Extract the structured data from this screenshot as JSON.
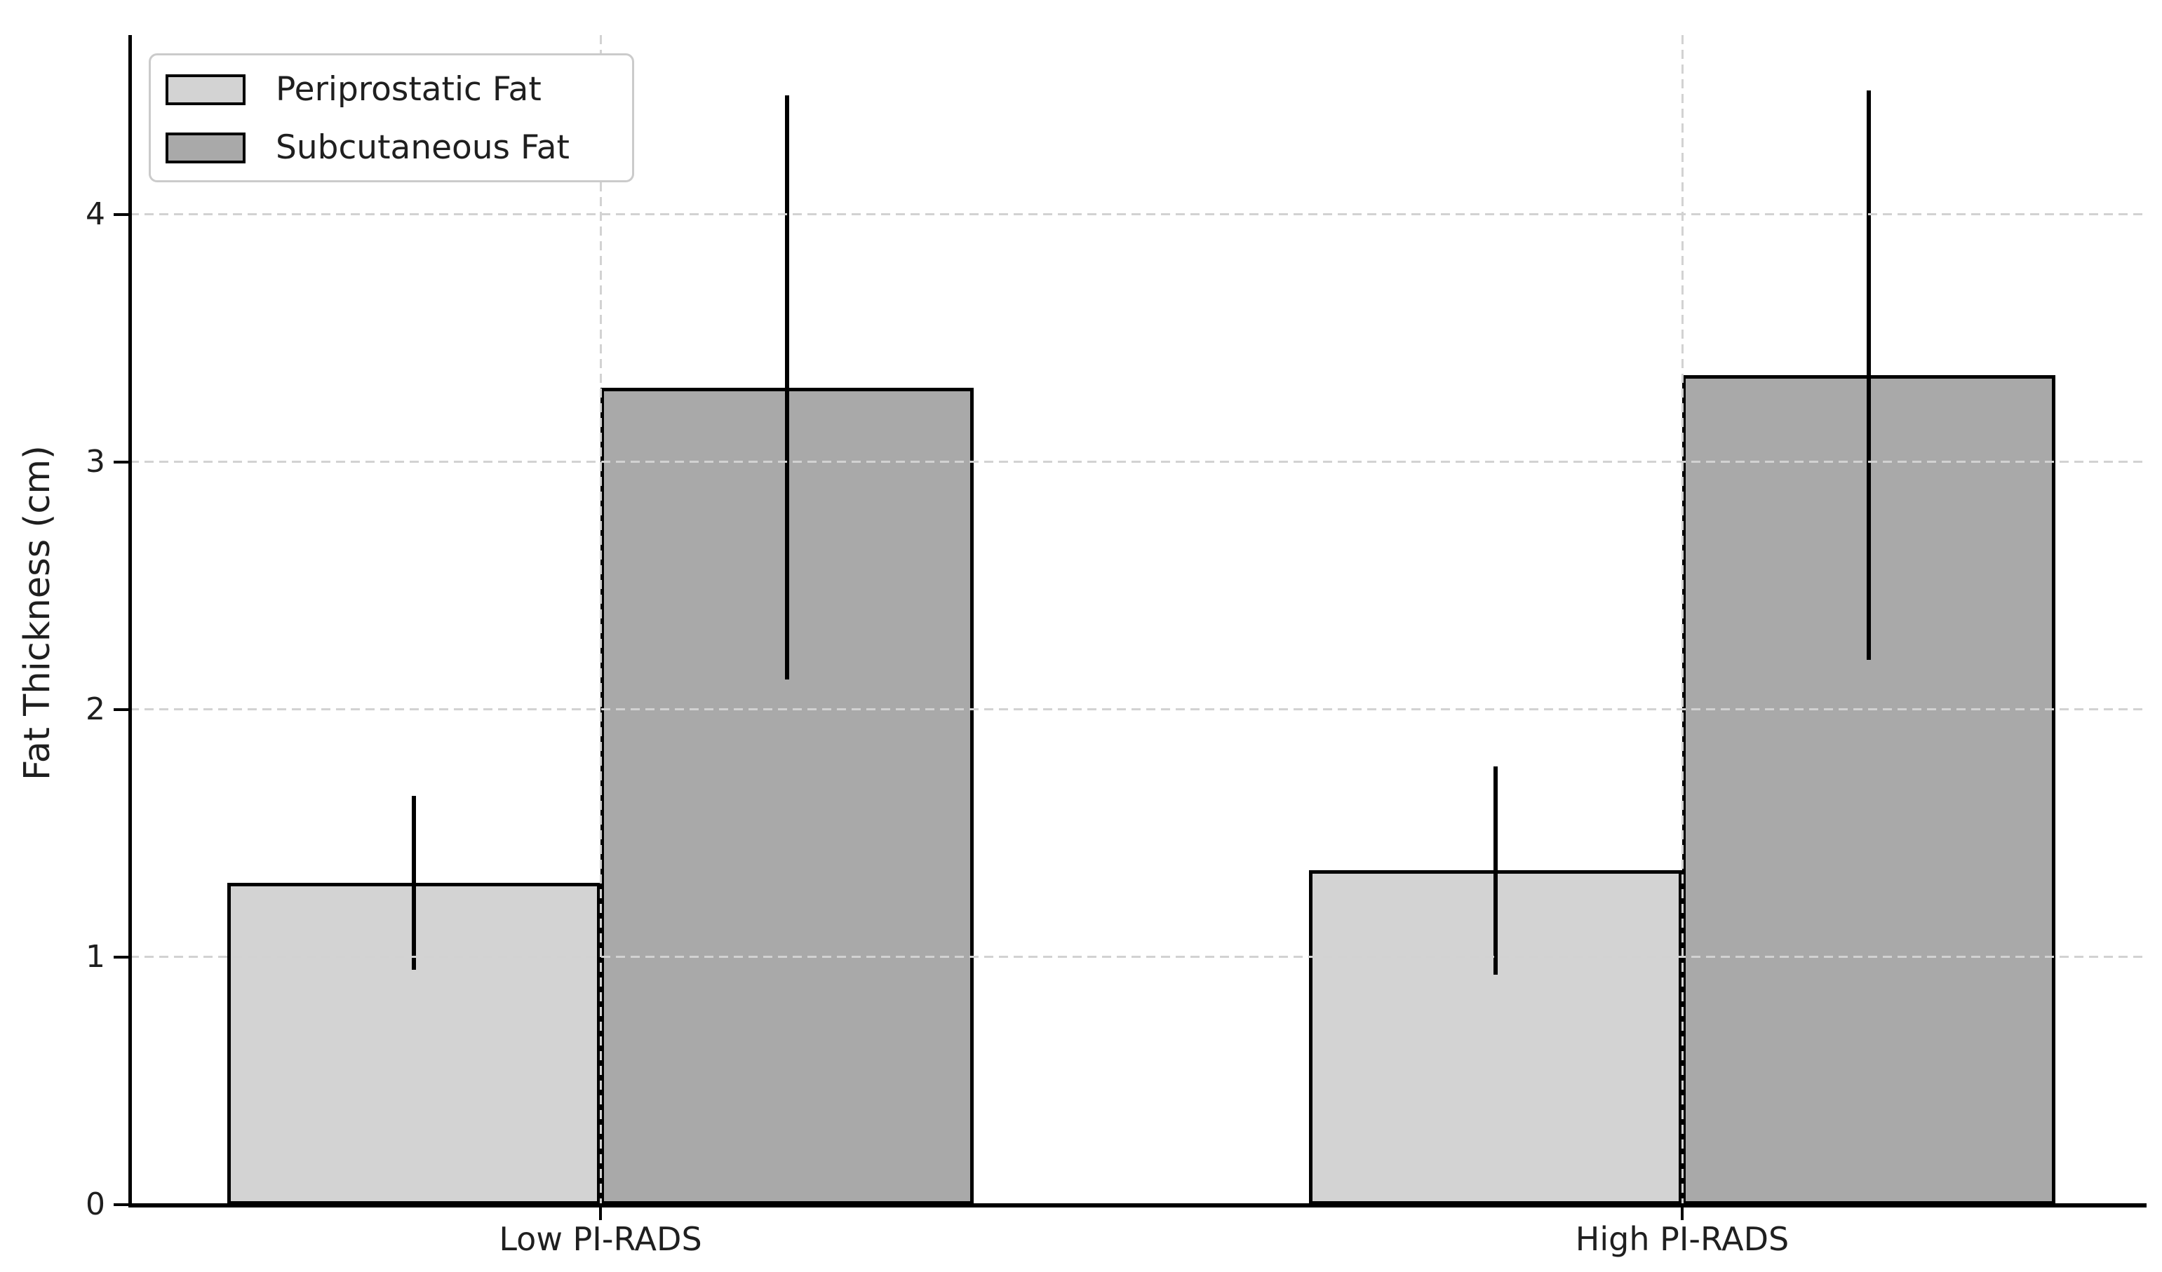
{
  "figure": {
    "background": "#ffffff",
    "text_color": "#1f1f1f"
  },
  "chart_data": {
    "type": "bar",
    "title": "",
    "categories": [
      "Low PI-RADS",
      "High PI-RADS"
    ],
    "series": [
      {
        "name": "Periprostatic Fat",
        "color": "#d3d3d3",
        "values": [
          1.3,
          1.35
        ],
        "errors": [
          0.35,
          0.42
        ]
      },
      {
        "name": "Subcutaneous Fat",
        "color": "#a9a9a9",
        "values": [
          3.3,
          3.35
        ],
        "errors": [
          1.18,
          1.15
        ]
      }
    ],
    "xlabel": "",
    "ylabel": "Fat Thickness (cm)",
    "yticks": [
      0,
      1,
      2,
      3,
      4
    ],
    "ylim": [
      0,
      4.72
    ],
    "grid": {
      "style": "dashed",
      "color": "#d2d2d2",
      "horizontal": true,
      "vertical": true,
      "drawn_over_bars": true
    },
    "legend": {
      "position": "upper-left",
      "border_color": "#cbcbcb",
      "background": "#ffffff"
    },
    "bar_edge_color": "#000000",
    "error_bar_color": "#000000",
    "axis": {
      "spine_color": "#000000",
      "tick_color": "#000000"
    }
  }
}
